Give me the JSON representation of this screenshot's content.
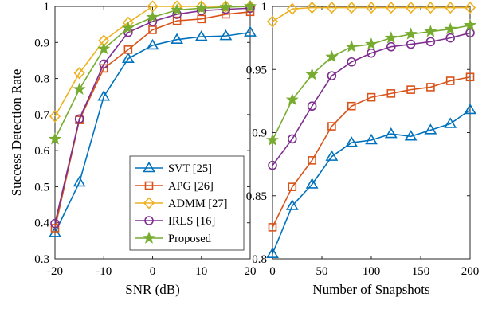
{
  "chart_data": [
    {
      "type": "line",
      "xlabel": "SNR (dB)",
      "ylabel": "Success Detection Rate",
      "xlim": [
        -20,
        20
      ],
      "ylim": [
        0.3,
        1
      ],
      "xticks": [
        -20,
        -10,
        0,
        10,
        20
      ],
      "xtick_labels": [
        "-20",
        "-10",
        "0",
        "10",
        "20"
      ],
      "yticks": [
        0.3,
        0.4,
        0.5,
        0.6,
        0.7,
        0.8,
        0.9,
        1
      ],
      "ytick_labels": [
        "0.3",
        "0.4",
        "0.5",
        "0.6",
        "0.7",
        "0.8",
        "0.9",
        "1"
      ],
      "grid": false,
      "legend": "lower-right",
      "x": [
        -20,
        -15,
        -10,
        -5,
        0,
        5,
        10,
        15,
        20
      ],
      "series": [
        {
          "name": "SVT [25]",
          "color": "#0072BD",
          "marker": "triangle",
          "values": [
            0.372,
            0.512,
            0.75,
            0.855,
            0.892,
            0.908,
            0.916,
            0.918,
            0.928
          ]
        },
        {
          "name": "APG [26]",
          "color": "#D95319",
          "marker": "square",
          "values": [
            0.385,
            0.685,
            0.828,
            0.88,
            0.935,
            0.96,
            0.965,
            0.978,
            0.985
          ]
        },
        {
          "name": "ADMM [27]",
          "color": "#EDB120",
          "marker": "diamond",
          "values": [
            0.695,
            0.815,
            0.905,
            0.955,
            1.0,
            1.0,
            1.0,
            1.0,
            1.0
          ]
        },
        {
          "name": "IRLS [16]",
          "color": "#7E2F8E",
          "marker": "circle",
          "values": [
            0.398,
            0.688,
            0.84,
            0.928,
            0.958,
            0.978,
            0.988,
            0.992,
            0.995
          ]
        },
        {
          "name": "Proposed",
          "color": "#77AC30",
          "marker": "star",
          "values": [
            0.632,
            0.77,
            0.882,
            0.94,
            0.97,
            0.99,
            0.995,
            0.998,
            1.0
          ]
        }
      ]
    },
    {
      "type": "line",
      "xlabel": "Number of Snapshots",
      "ylabel": "",
      "xlim": [
        0,
        200
      ],
      "ylim": [
        0.8,
        1
      ],
      "xticks": [
        0,
        50,
        100,
        150,
        200
      ],
      "xtick_labels": [
        "0",
        "50",
        "100",
        "150",
        "200"
      ],
      "yticks": [
        0.8,
        0.85,
        0.9,
        0.95,
        1
      ],
      "ytick_labels": [
        "0.8",
        "0.85",
        "0.9",
        "0.95",
        "1"
      ],
      "grid": false,
      "x": [
        0,
        20,
        40,
        60,
        80,
        100,
        120,
        140,
        160,
        180,
        200
      ],
      "series": [
        {
          "color": "#0072BD",
          "marker": "triangle",
          "values": [
            0.804,
            0.842,
            0.859,
            0.881,
            0.892,
            0.894,
            0.899,
            0.897,
            0.902,
            0.907,
            0.918
          ]
        },
        {
          "color": "#D95319",
          "marker": "square",
          "values": [
            0.825,
            0.857,
            0.878,
            0.905,
            0.921,
            0.928,
            0.931,
            0.934,
            0.936,
            0.941,
            0.944
          ]
        },
        {
          "color": "#EDB120",
          "marker": "diamond",
          "values": [
            0.988,
            0.998,
            0.999,
            0.999,
            0.999,
            0.999,
            0.999,
            0.999,
            0.999,
            0.999,
            0.999
          ]
        },
        {
          "color": "#7E2F8E",
          "marker": "circle",
          "values": [
            0.874,
            0.895,
            0.921,
            0.945,
            0.956,
            0.963,
            0.968,
            0.97,
            0.972,
            0.975,
            0.979
          ]
        },
        {
          "color": "#77AC30",
          "marker": "star",
          "values": [
            0.894,
            0.926,
            0.946,
            0.96,
            0.968,
            0.97,
            0.975,
            0.978,
            0.98,
            0.982,
            0.985
          ]
        }
      ]
    }
  ]
}
